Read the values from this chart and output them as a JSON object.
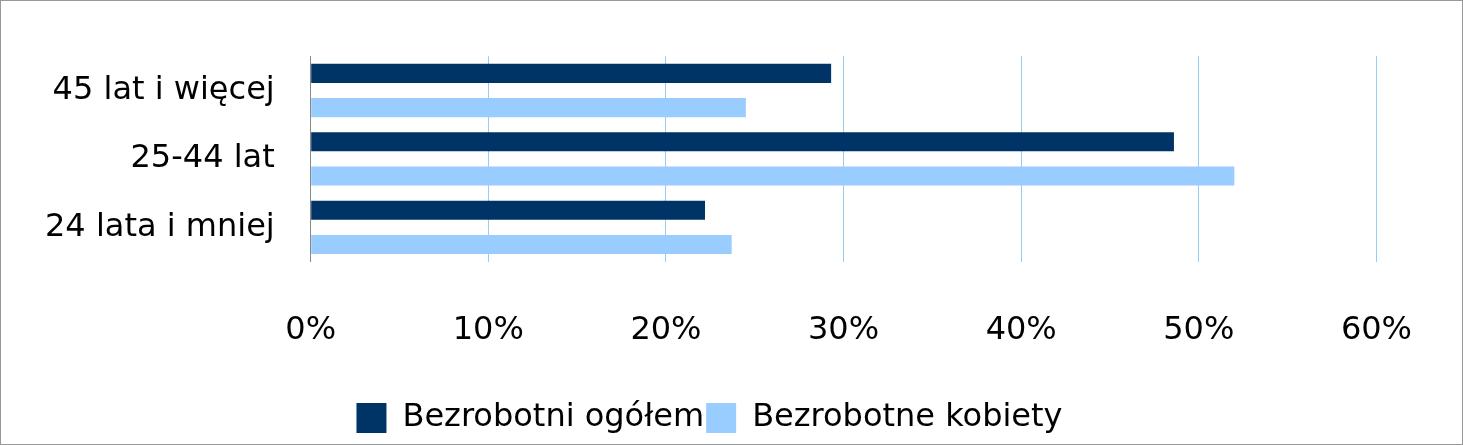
{
  "chart_data": {
    "type": "bar",
    "orientation": "horizontal",
    "categories": [
      "45 lat i więcej",
      "25-44 lat",
      "24 lata i mniej"
    ],
    "series": [
      {
        "name": "Bezrobotni ogółem",
        "color": "#003366",
        "values": [
          29.3,
          48.6,
          22.2
        ]
      },
      {
        "name": "Bezrobotne kobiety",
        "color": "#99ccff",
        "values": [
          24.5,
          52.0,
          23.7
        ]
      }
    ],
    "xlim": [
      0,
      60
    ],
    "xticks": [
      {
        "value": 0,
        "label": "0%"
      },
      {
        "value": 10,
        "label": "10%"
      },
      {
        "value": 20,
        "label": "20%"
      },
      {
        "value": 30,
        "label": "30%"
      },
      {
        "value": 40,
        "label": "40%"
      },
      {
        "value": 50,
        "label": "50%"
      },
      {
        "value": 60,
        "label": "60%"
      }
    ],
    "grid": "x",
    "legend": "bottom"
  }
}
